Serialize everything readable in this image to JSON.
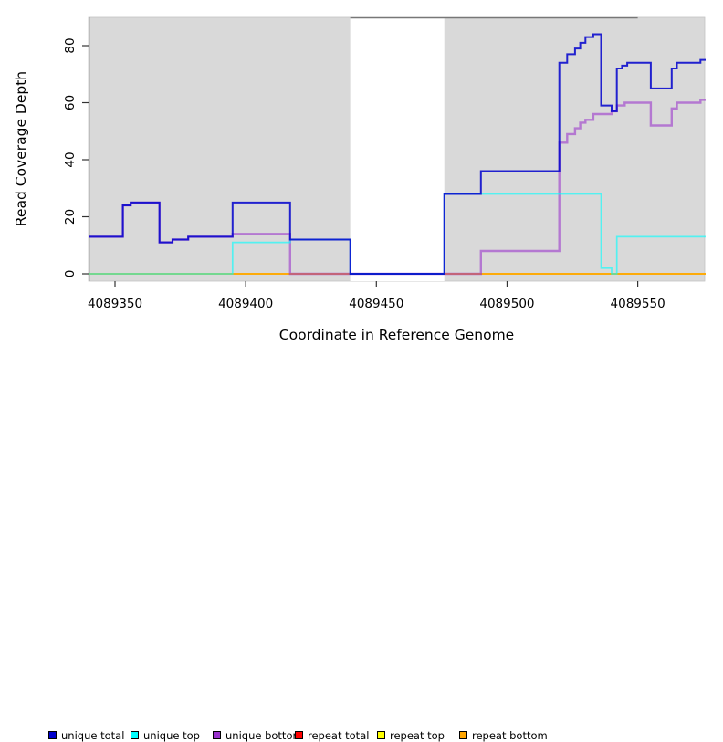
{
  "chart_data": {
    "type": "line",
    "subtype": "step",
    "title": "",
    "xlabel": "Coordinate in Reference Genome",
    "ylabel": "Read Coverage Depth",
    "xlim": [
      4089340,
      4089576
    ],
    "ylim": [
      0,
      90
    ],
    "x_ticks": [
      4089350,
      4089400,
      4089450,
      4089500,
      4089550
    ],
    "y_ticks": [
      0,
      20,
      40,
      60,
      80
    ],
    "grid": false,
    "panel_bg": "#d9d9d9",
    "masked_region": {
      "start": 4089440,
      "end": 4089476,
      "color": "#ffffff"
    },
    "mask_top_line": {
      "start": 4089440,
      "end": 4089550,
      "color": "#777777"
    },
    "legend_position": "bottom",
    "draw_order": [
      3,
      4,
      5,
      2,
      1,
      0
    ],
    "series": [
      {
        "name": "unique total",
        "color": "#0000cd",
        "opacity": 0.85,
        "width": 2.0,
        "points": [
          [
            4089340,
            13
          ],
          [
            4089353,
            24
          ],
          [
            4089356,
            25
          ],
          [
            4089367,
            11
          ],
          [
            4089372,
            12
          ],
          [
            4089378,
            13
          ],
          [
            4089395,
            25
          ],
          [
            4089417,
            12
          ],
          [
            4089440,
            0
          ],
          [
            4089476,
            28
          ],
          [
            4089490,
            36
          ],
          [
            4089520,
            74
          ],
          [
            4089523,
            77
          ],
          [
            4089526,
            79
          ],
          [
            4089528,
            81
          ],
          [
            4089530,
            83
          ],
          [
            4089533,
            84
          ],
          [
            4089536,
            59
          ],
          [
            4089540,
            57
          ],
          [
            4089542,
            72
          ],
          [
            4089544,
            73
          ],
          [
            4089546,
            74
          ],
          [
            4089555,
            65
          ],
          [
            4089563,
            72
          ],
          [
            4089565,
            74
          ],
          [
            4089574,
            75
          ]
        ]
      },
      {
        "name": "unique top",
        "color": "#00ffff",
        "opacity": 0.62,
        "width": 1.7,
        "points": [
          [
            4089340,
            0
          ],
          [
            4089395,
            11
          ],
          [
            4089417,
            12
          ],
          [
            4089440,
            0
          ],
          [
            4089476,
            28
          ],
          [
            4089536,
            2
          ],
          [
            4089540,
            0
          ],
          [
            4089542,
            13
          ]
        ]
      },
      {
        "name": "unique bottom",
        "color": "#9932cc",
        "opacity": 0.58,
        "width": 2.4,
        "points": [
          [
            4089340,
            13
          ],
          [
            4089353,
            24
          ],
          [
            4089356,
            25
          ],
          [
            4089367,
            11
          ],
          [
            4089372,
            12
          ],
          [
            4089378,
            13
          ],
          [
            4089395,
            14
          ],
          [
            4089417,
            0
          ],
          [
            4089490,
            8
          ],
          [
            4089520,
            46
          ],
          [
            4089523,
            49
          ],
          [
            4089526,
            51
          ],
          [
            4089528,
            53
          ],
          [
            4089530,
            54
          ],
          [
            4089533,
            56
          ],
          [
            4089540,
            57
          ],
          [
            4089542,
            59
          ],
          [
            4089545,
            60
          ],
          [
            4089555,
            52
          ],
          [
            4089563,
            58
          ],
          [
            4089565,
            60
          ],
          [
            4089574,
            61
          ]
        ]
      },
      {
        "name": "repeat total",
        "color": "#ff0000",
        "opacity": 0.9,
        "width": 1.4,
        "points": [
          [
            4089340,
            0
          ]
        ]
      },
      {
        "name": "repeat top",
        "color": "#ffff00",
        "opacity": 0.9,
        "width": 1.4,
        "points": [
          [
            4089340,
            0
          ]
        ]
      },
      {
        "name": "repeat bottom",
        "color": "#ffa500",
        "opacity": 0.9,
        "width": 1.8,
        "points": [
          [
            4089340,
            0
          ]
        ]
      }
    ]
  },
  "legend": {
    "items": [
      {
        "label": "unique total",
        "color": "#0000cd"
      },
      {
        "label": "unique top",
        "color": "#00ffff"
      },
      {
        "label": "unique bottom",
        "color": "#9932cc"
      },
      {
        "label": "repeat total",
        "color": "#ff0000"
      },
      {
        "label": "repeat top",
        "color": "#ffff00"
      },
      {
        "label": "repeat bottom",
        "color": "#ffa500"
      }
    ]
  },
  "axes": {
    "xlabel": "Coordinate in Reference Genome",
    "ylabel": "Read Coverage Depth"
  }
}
